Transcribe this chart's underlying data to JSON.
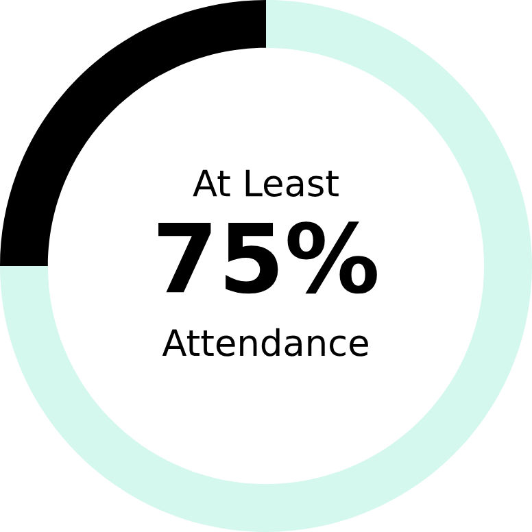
{
  "chart_data": {
    "type": "donut",
    "categories": [
      null,
      null
    ],
    "values": [
      25,
      75
    ],
    "colors": [
      "#000000",
      "#d4f7ee"
    ],
    "annotations": [
      "At Least",
      "75%",
      "Attendance"
    ]
  }
}
